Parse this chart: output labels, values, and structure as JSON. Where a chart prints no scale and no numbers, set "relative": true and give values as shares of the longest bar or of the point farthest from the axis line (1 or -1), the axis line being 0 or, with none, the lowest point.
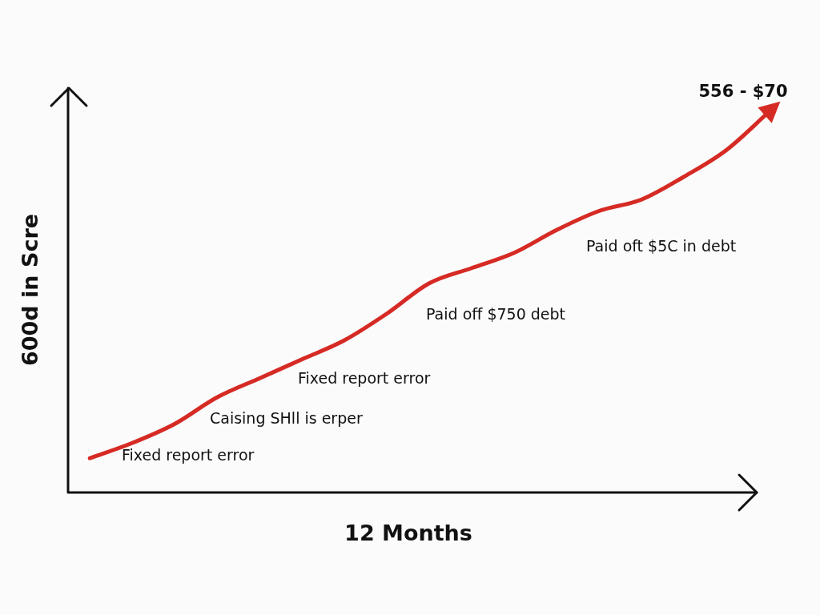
{
  "chart_data": {
    "type": "line",
    "relative": true,
    "xlabel": "12 Months",
    "ylabel": "600d in Scre",
    "categories": [
      null,
      null,
      null,
      null,
      null,
      null,
      null,
      null,
      null,
      null,
      null,
      null,
      null,
      null,
      null,
      null,
      null
    ],
    "series": [
      {
        "color": "#d62a24",
        "values": [
          0.09,
          0.13,
          0.18,
          0.25,
          0.3,
          0.35,
          0.4,
          0.47,
          0.55,
          0.59,
          0.63,
          0.69,
          0.74,
          0.77,
          0.83,
          0.9,
          1
        ]
      }
    ],
    "annotations": [
      "556 - $70",
      "Fixed report error",
      "Caising SHll is erper",
      "Fixed report error",
      "Paid off $750 debt",
      "Paid oft $5C in debt"
    ],
    "marker": "none",
    "legend": false
  }
}
